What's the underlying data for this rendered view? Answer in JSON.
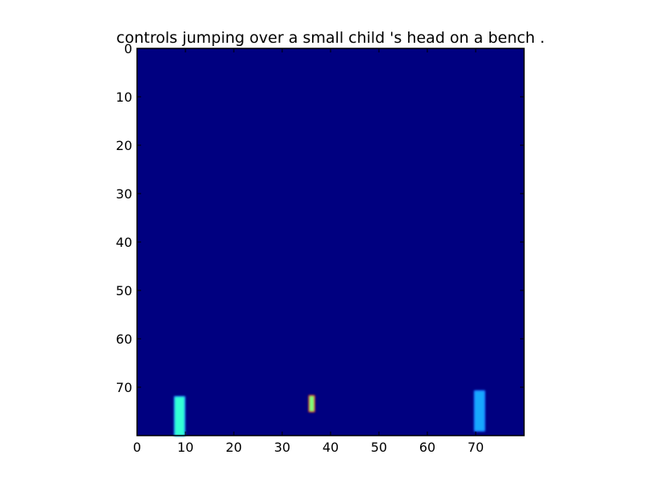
{
  "chart_data": {
    "type": "heatmap",
    "title": "controls jumping over a small child 's head on a bench .",
    "xlabel": "",
    "ylabel": "",
    "grid": false,
    "xlim": [
      0,
      80
    ],
    "ylim": [
      80,
      0
    ],
    "x_ticks": [
      0,
      10,
      20,
      30,
      40,
      50,
      60,
      70
    ],
    "y_ticks": [
      0,
      10,
      20,
      30,
      40,
      50,
      60,
      70
    ],
    "background_color": "#000080",
    "colormap": "jet",
    "hot_regions": [
      {
        "name": "left-bar",
        "x": [
          7.8,
          9.8
        ],
        "y": [
          72.0,
          80.0
        ],
        "color": "#33ffd6",
        "edge_color": "#1e8cff"
      },
      {
        "name": "center-point",
        "x": [
          35.6,
          36.6
        ],
        "y": [
          71.8,
          75.0
        ],
        "color": "#7dff7a",
        "edge_color": "#ff3b1e"
      },
      {
        "name": "right-bar",
        "x": [
          69.8,
          71.8
        ],
        "y": [
          70.8,
          79.0
        ],
        "color": "#12a8ff",
        "edge_color": "#1e6cff"
      }
    ]
  }
}
